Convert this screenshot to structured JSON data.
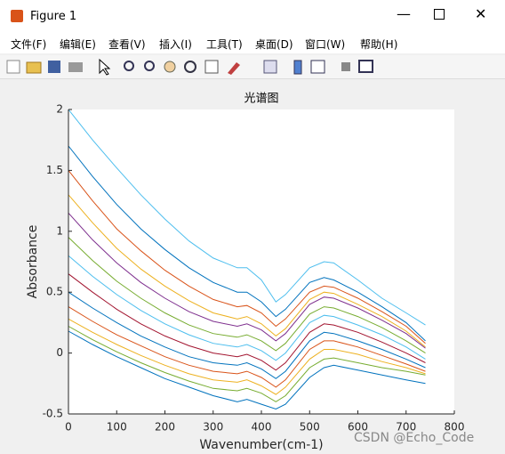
{
  "window": {
    "title": "Figure 1",
    "menu": [
      "文件(F)",
      "编辑(E)",
      "查看(V)",
      "插入(I)",
      "工具(T)",
      "桌面(D)",
      "窗口(W)",
      "帮助(H)"
    ],
    "watermark": "CSDN @Echo_Code"
  },
  "chart_data": {
    "type": "line",
    "title": "光谱图",
    "x_label": "Wavenumber(cm-1)",
    "y_label": "Absorbance",
    "x": [
      0,
      50,
      100,
      150,
      200,
      250,
      300,
      350,
      370,
      400,
      430,
      450,
      500,
      530,
      550,
      600,
      650,
      700,
      740
    ],
    "series": [
      {
        "color": "#4DBEEE",
        "values": [
          2.0,
          1.75,
          1.52,
          1.3,
          1.1,
          0.92,
          0.78,
          0.7,
          0.7,
          0.6,
          0.42,
          0.48,
          0.7,
          0.75,
          0.74,
          0.6,
          0.45,
          0.33,
          0.23
        ]
      },
      {
        "color": "#0072BD",
        "values": [
          1.7,
          1.45,
          1.22,
          1.02,
          0.85,
          0.7,
          0.58,
          0.5,
          0.5,
          0.42,
          0.3,
          0.36,
          0.58,
          0.62,
          0.6,
          0.5,
          0.38,
          0.25,
          0.1
        ]
      },
      {
        "color": "#D95319",
        "values": [
          1.5,
          1.25,
          1.02,
          0.84,
          0.68,
          0.55,
          0.44,
          0.38,
          0.39,
          0.33,
          0.22,
          0.28,
          0.5,
          0.55,
          0.54,
          0.45,
          0.34,
          0.22,
          0.08
        ]
      },
      {
        "color": "#EDB120",
        "values": [
          1.3,
          1.07,
          0.86,
          0.69,
          0.55,
          0.43,
          0.33,
          0.28,
          0.3,
          0.24,
          0.14,
          0.2,
          0.44,
          0.5,
          0.49,
          0.4,
          0.3,
          0.18,
          0.05
        ]
      },
      {
        "color": "#7E2F8E",
        "values": [
          1.15,
          0.93,
          0.74,
          0.58,
          0.45,
          0.34,
          0.26,
          0.22,
          0.24,
          0.19,
          0.1,
          0.16,
          0.4,
          0.46,
          0.45,
          0.37,
          0.27,
          0.16,
          0.04
        ]
      },
      {
        "color": "#77AC30",
        "values": [
          0.95,
          0.76,
          0.59,
          0.45,
          0.33,
          0.23,
          0.16,
          0.13,
          0.15,
          0.1,
          0.02,
          0.08,
          0.32,
          0.38,
          0.37,
          0.3,
          0.21,
          0.1,
          0.0
        ]
      },
      {
        "color": "#4DBEEE",
        "values": [
          0.8,
          0.63,
          0.48,
          0.35,
          0.24,
          0.15,
          0.08,
          0.05,
          0.07,
          0.02,
          -0.06,
          0.0,
          0.25,
          0.31,
          0.3,
          0.23,
          0.15,
          0.05,
          -0.05
        ]
      },
      {
        "color": "#A2142F",
        "values": [
          0.65,
          0.5,
          0.36,
          0.24,
          0.14,
          0.06,
          0.0,
          -0.03,
          -0.01,
          -0.06,
          -0.14,
          -0.08,
          0.17,
          0.24,
          0.23,
          0.17,
          0.09,
          0.0,
          -0.08
        ]
      },
      {
        "color": "#0072BD",
        "values": [
          0.5,
          0.37,
          0.25,
          0.14,
          0.05,
          -0.03,
          -0.08,
          -0.1,
          -0.08,
          -0.13,
          -0.21,
          -0.15,
          0.1,
          0.17,
          0.16,
          0.1,
          0.03,
          -0.05,
          -0.12
        ]
      },
      {
        "color": "#D95319",
        "values": [
          0.38,
          0.26,
          0.15,
          0.06,
          -0.03,
          -0.1,
          -0.15,
          -0.17,
          -0.15,
          -0.2,
          -0.28,
          -0.22,
          0.03,
          0.1,
          0.1,
          0.05,
          -0.02,
          -0.09,
          -0.15
        ]
      },
      {
        "color": "#EDB120",
        "values": [
          0.28,
          0.17,
          0.07,
          -0.02,
          -0.1,
          -0.17,
          -0.22,
          -0.24,
          -0.22,
          -0.27,
          -0.34,
          -0.28,
          -0.05,
          0.03,
          0.03,
          -0.01,
          -0.07,
          -0.12,
          -0.17
        ]
      },
      {
        "color": "#77AC30",
        "values": [
          0.22,
          0.11,
          0.01,
          -0.08,
          -0.16,
          -0.23,
          -0.29,
          -0.31,
          -0.29,
          -0.33,
          -0.4,
          -0.35,
          -0.12,
          -0.05,
          -0.04,
          -0.08,
          -0.12,
          -0.15,
          -0.18
        ]
      },
      {
        "color": "#0072BD",
        "values": [
          0.18,
          0.07,
          -0.03,
          -0.12,
          -0.21,
          -0.28,
          -0.35,
          -0.4,
          -0.38,
          -0.42,
          -0.46,
          -0.42,
          -0.2,
          -0.12,
          -0.1,
          -0.14,
          -0.18,
          -0.22,
          -0.25
        ]
      }
    ],
    "xlim": [
      0,
      800
    ],
    "xticks": [
      0,
      100,
      200,
      300,
      400,
      500,
      600,
      700,
      800
    ],
    "ylim": [
      -0.5,
      2
    ],
    "yticks": [
      -0.5,
      0,
      0.5,
      1,
      1.5,
      2
    ]
  }
}
